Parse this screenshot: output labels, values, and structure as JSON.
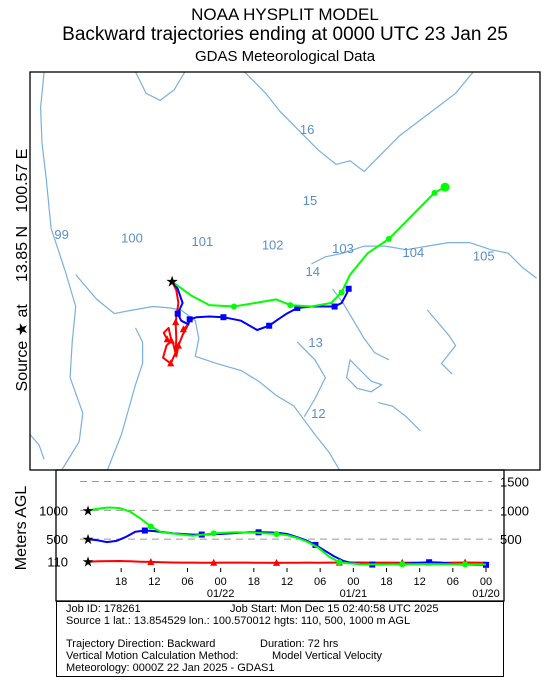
{
  "titles": {
    "line1": "NOAA HYSPLIT MODEL",
    "line2": "Backward trajectories ending at 0000 UTC 23 Jan 25",
    "line3": "GDAS Meteorological Data"
  },
  "side_label": {
    "prefix": "Source",
    "star": "★",
    "rest": "at     13.85 N   100.57 E"
  },
  "vertical_axis_label": "Meters AGL",
  "source": {
    "lat": 13.85,
    "lon": 100.57
  },
  "colors": {
    "red": "#ff0000",
    "blue": "#0000ff",
    "green": "#00ff00",
    "map_lines": "#7ab0dd",
    "label": "#5b8fc4"
  },
  "map": {
    "lon_labels": [
      "99",
      "100",
      "101",
      "102",
      "103",
      "104",
      "105"
    ],
    "lat_labels": [
      "12",
      "13",
      "14",
      "15",
      "16"
    ],
    "lon_range": [
      98.55,
      105.8
    ],
    "lat_range": [
      11.2,
      16.8
    ]
  },
  "chart_data": {
    "type": "line",
    "title": "Backward trajectories ending at 0000 UTC 23 Jan 25",
    "series": [
      {
        "name": "110",
        "color": "#ff0000",
        "track": [
          [
            100.57,
            13.85
          ],
          [
            100.63,
            13.73
          ],
          [
            100.66,
            13.55
          ],
          [
            100.62,
            13.28
          ],
          [
            100.63,
            13.05
          ],
          [
            100.62,
            12.85
          ],
          [
            100.55,
            12.7
          ],
          [
            100.44,
            12.78
          ],
          [
            100.49,
            12.95
          ],
          [
            100.56,
            13.02
          ],
          [
            100.52,
            13.2
          ],
          [
            100.45,
            13.13
          ],
          [
            100.5,
            13.04
          ],
          [
            100.58,
            13.0
          ],
          [
            100.63,
            12.8
          ],
          [
            100.66,
            12.95
          ],
          [
            100.72,
            13.1
          ],
          [
            100.8,
            13.25
          ],
          [
            100.73,
            13.18
          ]
        ],
        "heights": [
          110,
          118,
          120,
          122,
          117,
          110,
          105,
          100,
          95,
          94,
          93,
          92,
          92,
          93,
          94,
          93,
          92,
          90,
          88,
          90,
          92,
          93,
          92,
          93,
          94,
          96,
          95,
          93,
          94,
          93,
          92,
          93,
          92,
          93,
          92,
          94,
          95,
          94,
          92
        ]
      },
      {
        "name": "500",
        "color": "#0000ff",
        "track": [
          [
            100.57,
            13.85
          ],
          [
            100.65,
            13.75
          ],
          [
            100.72,
            13.55
          ],
          [
            100.65,
            13.4
          ],
          [
            100.7,
            13.3
          ],
          [
            100.8,
            13.25
          ],
          [
            100.82,
            13.32
          ],
          [
            100.92,
            13.35
          ],
          [
            101.1,
            13.36
          ],
          [
            101.3,
            13.35
          ],
          [
            101.55,
            13.3
          ],
          [
            101.78,
            13.17
          ],
          [
            101.95,
            13.23
          ],
          [
            102.05,
            13.3
          ],
          [
            102.2,
            13.4
          ],
          [
            102.35,
            13.48
          ],
          [
            102.55,
            13.5
          ],
          [
            102.73,
            13.5
          ],
          [
            102.88,
            13.5
          ],
          [
            102.98,
            13.55
          ],
          [
            103.05,
            13.68
          ],
          [
            103.08,
            13.75
          ]
        ],
        "heights": [
          500,
          480,
          450,
          470,
          540,
          630,
          650,
          640,
          620,
          600,
          590,
          580,
          580,
          585,
          590,
          600,
          610,
          620,
          620,
          618,
          610,
          590,
          540,
          480,
          400,
          300,
          200,
          120,
          80,
          70,
          60,
          65,
          70,
          75,
          80,
          90,
          100,
          95,
          80,
          65,
          60,
          55,
          55
        ]
      },
      {
        "name": "1000",
        "color": "#00ff00",
        "track": [
          [
            100.57,
            13.85
          ],
          [
            100.85,
            13.65
          ],
          [
            101.1,
            13.52
          ],
          [
            101.45,
            13.5
          ],
          [
            101.75,
            13.55
          ],
          [
            102.05,
            13.6
          ],
          [
            102.25,
            13.52
          ],
          [
            102.55,
            13.5
          ],
          [
            102.83,
            13.55
          ],
          [
            102.98,
            13.7
          ],
          [
            103.1,
            13.95
          ],
          [
            103.35,
            14.25
          ],
          [
            103.65,
            14.45
          ],
          [
            103.9,
            14.7
          ],
          [
            104.1,
            14.9
          ],
          [
            104.3,
            15.1
          ],
          [
            104.45,
            15.18
          ]
        ],
        "heights": [
          1000,
          1030,
          1050,
          1040,
          980,
          860,
          720,
          620,
          600,
          580,
          560,
          580,
          600,
          610,
          620,
          615,
          610,
          600,
          590,
          570,
          520,
          450,
          350,
          200,
          100,
          80,
          65,
          62,
          63,
          64,
          65,
          66,
          67,
          68,
          66,
          64,
          63,
          62,
          62
        ]
      }
    ],
    "height_axis": {
      "label": "Meters AGL",
      "ylim": [
        0,
        1700
      ],
      "left_ticks": [
        "110",
        "500",
        "1000"
      ],
      "right_ticks": [
        "500",
        "1000",
        "1500"
      ]
    },
    "time_axis": {
      "hour_labels": [
        "18",
        "12",
        "06",
        "00",
        "18",
        "12",
        "06",
        "00",
        "18",
        "12",
        "06",
        "00"
      ],
      "date_labels": [
        "01/22",
        "01/21",
        "01/20"
      ],
      "duration_hours": 72
    }
  },
  "info": {
    "job_id": "Job ID: 178261",
    "job_start": "Job Start: Mon Dec 15 02:40:58 UTC 2025",
    "source_line": "Source 1 lat.: 13.854529  lon.: 100.570012  hgts: 110, 500, 1000 m AGL",
    "direction": "Trajectory Direction: Backward",
    "duration": "Duration: 72 hrs",
    "vertical_method_label": "Vertical Motion Calculation Method:",
    "vertical_method_value": "Model Vertical Velocity",
    "meteorology": "Meteorology: 0000Z 22 Jan 2025 - GDAS1"
  }
}
